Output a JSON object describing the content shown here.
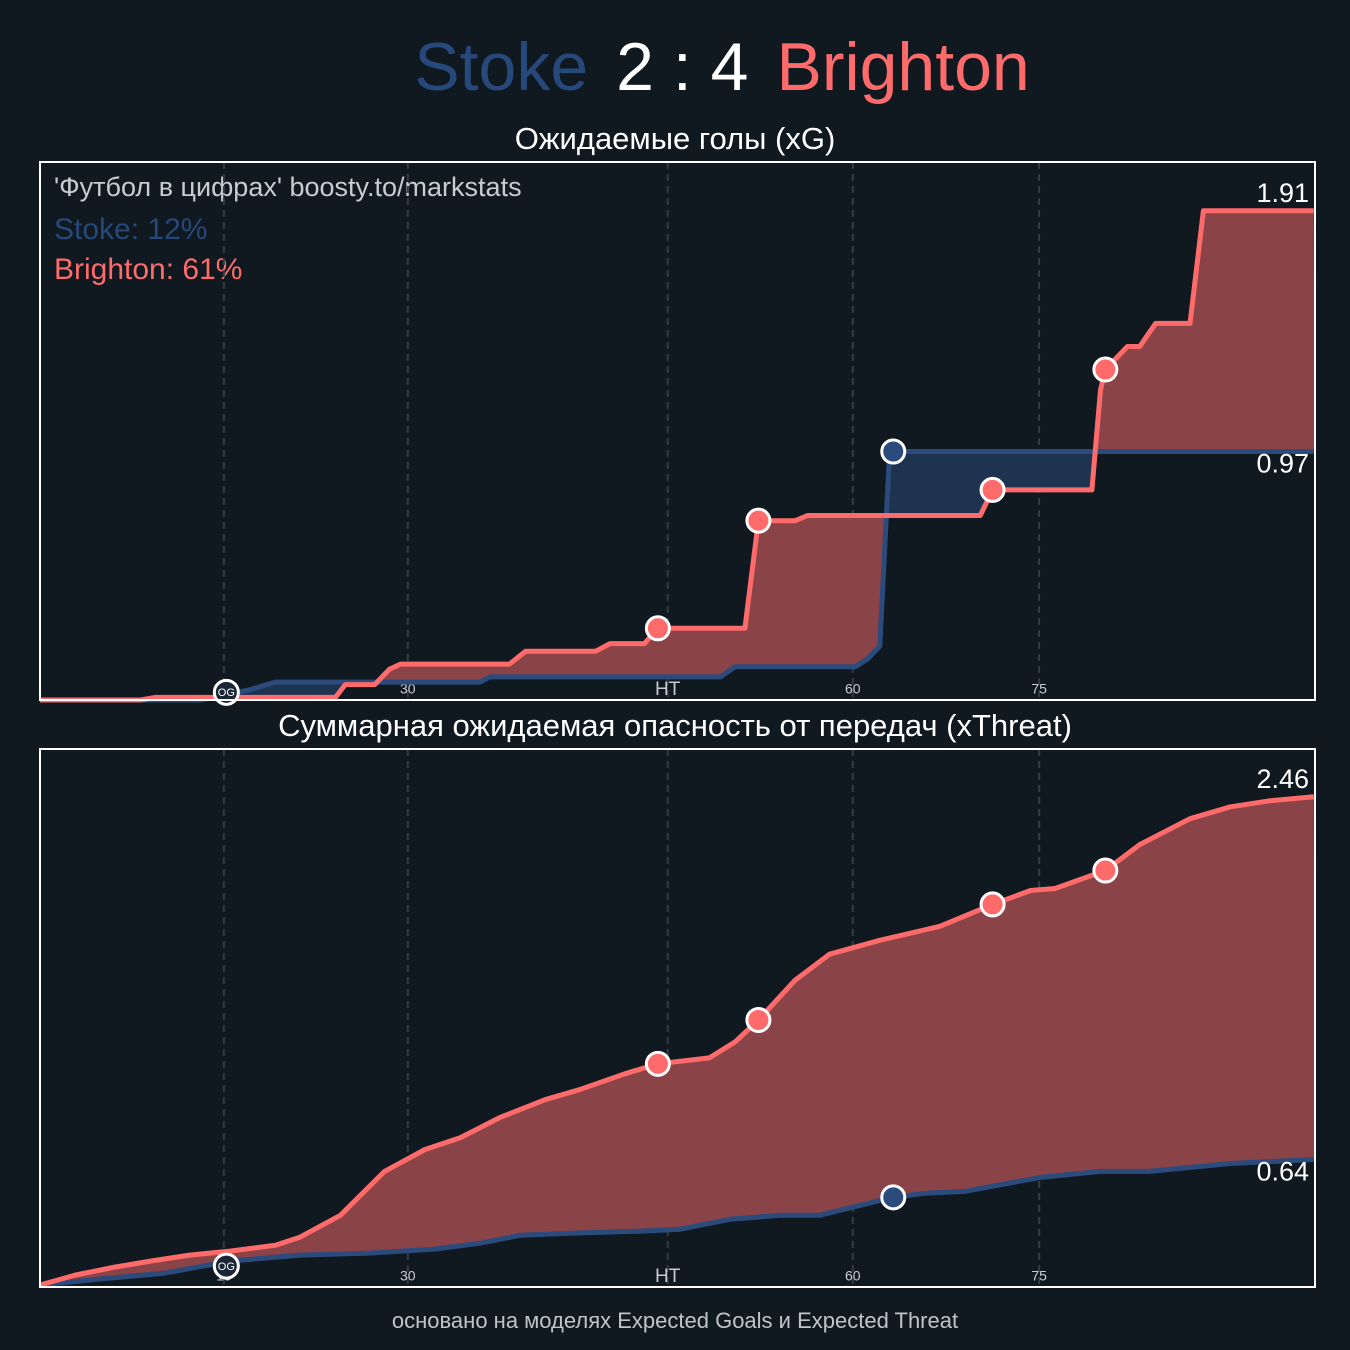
{
  "header": {
    "home": "Stoke",
    "score": "2 : 4",
    "away": "Brighton"
  },
  "watermark": "'Футбол в цифрах' boosty.to/markstats",
  "probabilities": [
    "Stoke: 12%",
    "Brighton: 61%"
  ],
  "footer": "основано на моделях Expected Goals и Expected Threat",
  "chart_data": [
    {
      "type": "line",
      "title": "Ожидаемые голы (xG)",
      "xlim": [
        0,
        104
      ],
      "ylim": [
        0,
        2.1
      ],
      "xticks": [
        15,
        30,
        {
          "value": 51.2,
          "label": "HT"
        },
        {
          "value": 66.3,
          "label": "60"
        },
        {
          "value": 81.5,
          "label": "75"
        }
      ],
      "grid": true,
      "series": [
        {
          "name": "Stoke",
          "color": "#2a4b7c",
          "fill": "#1e3350",
          "x": [
            0,
            13.1,
            17.1,
            19.2,
            35.9,
            36.7,
            55.5,
            56.7,
            66.5,
            67.5,
            68.5,
            69.3,
            103.9
          ],
          "values": [
            0,
            0,
            0.04,
            0.07,
            0.07,
            0.09,
            0.09,
            0.13,
            0.13,
            0.16,
            0.21,
            0.97,
            0.97
          ]
        },
        {
          "name": "Brighton",
          "color": "#ff6b6b",
          "fill": "#8a4347",
          "x": [
            0,
            8.2,
            9.4,
            24.1,
            24.9,
            27.3,
            28.5,
            29.4,
            38.3,
            39.6,
            45.3,
            46.5,
            49.3,
            50.4,
            57.5,
            58.6,
            61.6,
            62.6,
            76.7,
            77.7,
            85.8,
            86.5,
            86.9,
            88.7,
            89.7,
            91.0,
            93.8,
            94.9,
            103.9
          ],
          "values": [
            0,
            0,
            0.01,
            0.01,
            0.06,
            0.06,
            0.12,
            0.14,
            0.14,
            0.19,
            0.19,
            0.22,
            0.22,
            0.28,
            0.28,
            0.7,
            0.7,
            0.72,
            0.72,
            0.82,
            0.82,
            1.21,
            1.29,
            1.38,
            1.38,
            1.47,
            1.47,
            1.91,
            1.91
          ]
        }
      ],
      "goals": [
        {
          "team": "Stoke",
          "x": 15.2,
          "y": 0.03,
          "label": "OG"
        },
        {
          "team": "Stoke",
          "x": 69.6,
          "y": 0.97
        },
        {
          "team": "Brighton",
          "x": 50.4,
          "y": 0.28
        },
        {
          "team": "Brighton",
          "x": 58.6,
          "y": 0.7
        },
        {
          "team": "Brighton",
          "x": 77.7,
          "y": 0.82
        },
        {
          "team": "Brighton",
          "x": 86.9,
          "y": 1.29
        }
      ]
    },
    {
      "type": "line",
      "title": "Суммарная ожидаемая опасность от передач (xThreat)",
      "xlim": [
        0,
        104
      ],
      "ylim": [
        0,
        2.7
      ],
      "xticks": [
        15,
        30,
        {
          "value": 51.2,
          "label": "HT"
        },
        {
          "value": 66.3,
          "label": "60"
        },
        {
          "value": 81.5,
          "label": "75"
        }
      ],
      "grid": true,
      "series": [
        {
          "name": "Stoke",
          "color": "#2a4b7c",
          "fill": "#1e3350",
          "x": [
            0,
            4.9,
            10.2,
            15.5,
            21.2,
            26.9,
            32.2,
            35.9,
            39.2,
            43.2,
            48.9,
            52.2,
            56.3,
            60.4,
            63.6,
            66.9,
            69.6,
            72.2,
            75.4,
            81.6,
            86.5,
            90.5,
            97.1,
            103.9
          ],
          "values": [
            0.01,
            0.04,
            0.07,
            0.13,
            0.16,
            0.17,
            0.19,
            0.22,
            0.26,
            0.27,
            0.28,
            0.29,
            0.34,
            0.36,
            0.36,
            0.41,
            0.45,
            0.47,
            0.48,
            0.55,
            0.58,
            0.58,
            0.62,
            0.64
          ]
        },
        {
          "name": "Brighton",
          "color": "#ff6b6b",
          "fill": "#8a4347",
          "x": [
            0,
            2.9,
            6.1,
            9.0,
            12.2,
            15.5,
            19.2,
            21.2,
            24.5,
            28.1,
            31.4,
            34.3,
            37.5,
            41.2,
            44.0,
            47.7,
            50.4,
            54.6,
            56.7,
            58.6,
            61.6,
            64.4,
            68.5,
            73.4,
            77.7,
            80.8,
            82.8,
            86.9,
            89.7,
            93.8,
            97.1,
            100.3,
            103.9
          ],
          "values": [
            0.01,
            0.06,
            0.1,
            0.13,
            0.16,
            0.18,
            0.21,
            0.25,
            0.36,
            0.58,
            0.69,
            0.75,
            0.85,
            0.94,
            0.99,
            1.07,
            1.12,
            1.15,
            1.23,
            1.34,
            1.54,
            1.67,
            1.74,
            1.81,
            1.92,
            1.99,
            2.0,
            2.09,
            2.22,
            2.35,
            2.41,
            2.44,
            2.46
          ]
        }
      ],
      "goals": [
        {
          "team": "Stoke",
          "x": 15.2,
          "y": 0.105,
          "label": "OG"
        },
        {
          "team": "Stoke",
          "x": 69.6,
          "y": 0.45
        },
        {
          "team": "Brighton",
          "x": 50.4,
          "y": 1.12
        },
        {
          "team": "Brighton",
          "x": 58.6,
          "y": 1.34
        },
        {
          "team": "Brighton",
          "x": 77.7,
          "y": 1.92
        },
        {
          "team": "Brighton",
          "x": 86.9,
          "y": 2.09
        }
      ]
    }
  ]
}
